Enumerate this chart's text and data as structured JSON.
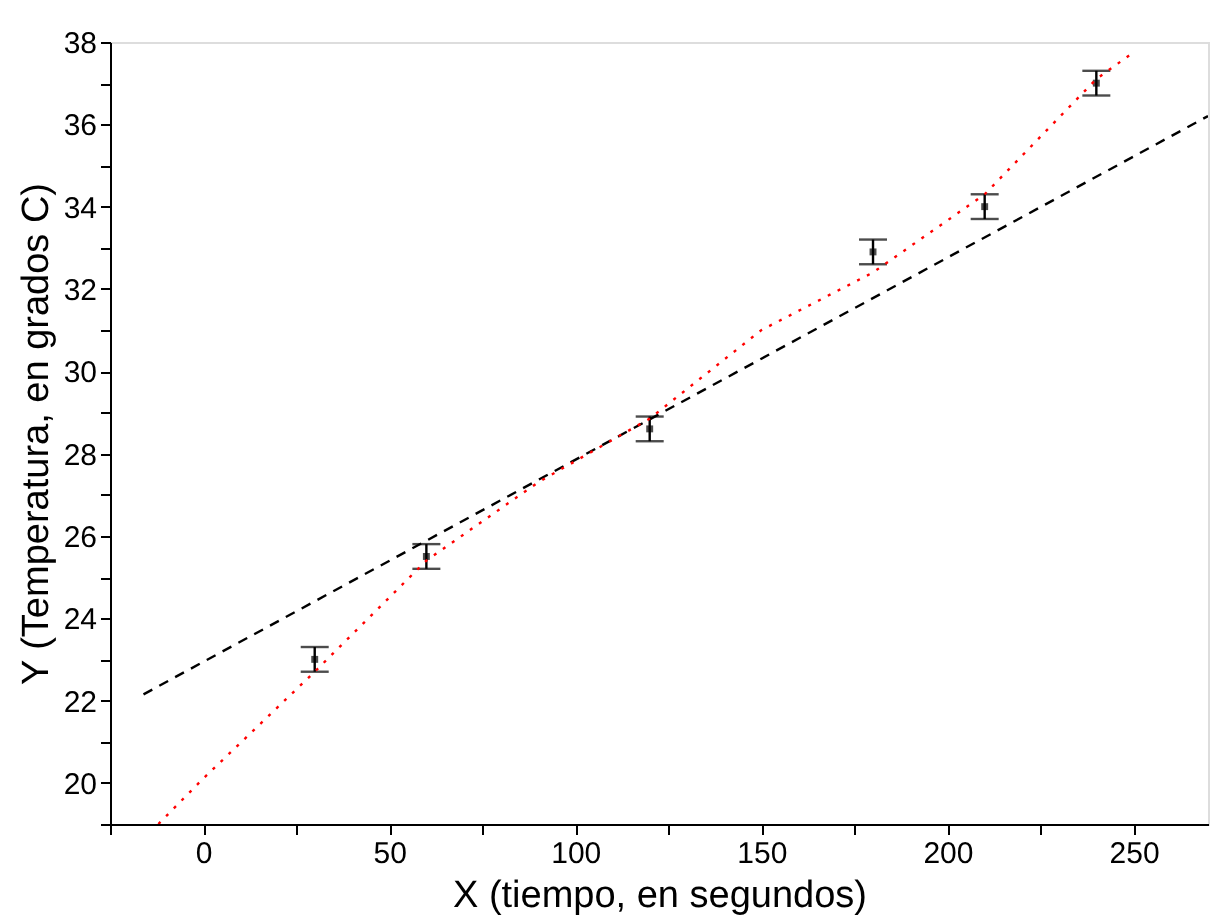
{
  "chart_data": {
    "type": "scatter",
    "xlabel": "X (tiempo, en segundos)",
    "ylabel": "Y (Temperatura, en grados C)",
    "xlim": [
      -25,
      270
    ],
    "ylim": [
      19,
      38
    ],
    "xticks": [
      {
        "value": -25,
        "label": null
      },
      0,
      {
        "value": 25,
        "label": null
      },
      50,
      {
        "value": 75,
        "label": null
      },
      100,
      {
        "value": 125,
        "label": null
      },
      150,
      {
        "value": 175,
        "label": null
      },
      200,
      {
        "value": 225,
        "label": null
      },
      250
    ],
    "yticks": [
      {
        "value": 19,
        "label": null
      },
      20,
      {
        "value": 21,
        "label": null
      },
      22,
      {
        "value": 23,
        "label": null
      },
      24,
      {
        "value": 25,
        "label": null
      },
      26,
      {
        "value": 27,
        "label": null
      },
      28,
      {
        "value": 29,
        "label": null
      },
      30,
      {
        "value": 31,
        "label": null
      },
      32,
      {
        "value": 33,
        "label": null
      },
      34,
      {
        "value": 35,
        "label": null
      },
      36,
      {
        "value": 37,
        "label": null
      },
      38
    ],
    "grid": false,
    "series": [
      {
        "color": "#000000",
        "marker": "square",
        "x": [
          30,
          60,
          120,
          180,
          210,
          240
        ],
        "values": [
          23.0,
          25.5,
          28.6,
          32.9,
          34.0,
          37.0
        ],
        "errors": [
          0.3,
          0.3,
          0.3,
          0.3,
          0.3,
          0.3
        ]
      },
      {
        "type": "line",
        "color": "#000000",
        "line_style": "dashed",
        "x": [
          -16,
          270
        ],
        "values": [
          22.15,
          36.2
        ]
      },
      {
        "type": "line",
        "color": "#ff0000",
        "line_style": "dotted",
        "x": [
          -12,
          0,
          30,
          60,
          90,
          120,
          150,
          180,
          210,
          240,
          250
        ],
        "values": [
          19.0,
          20.1,
          22.7,
          25.4,
          27.3,
          28.85,
          31.0,
          32.4,
          34.3,
          37.1,
          37.75
        ]
      }
    ]
  }
}
